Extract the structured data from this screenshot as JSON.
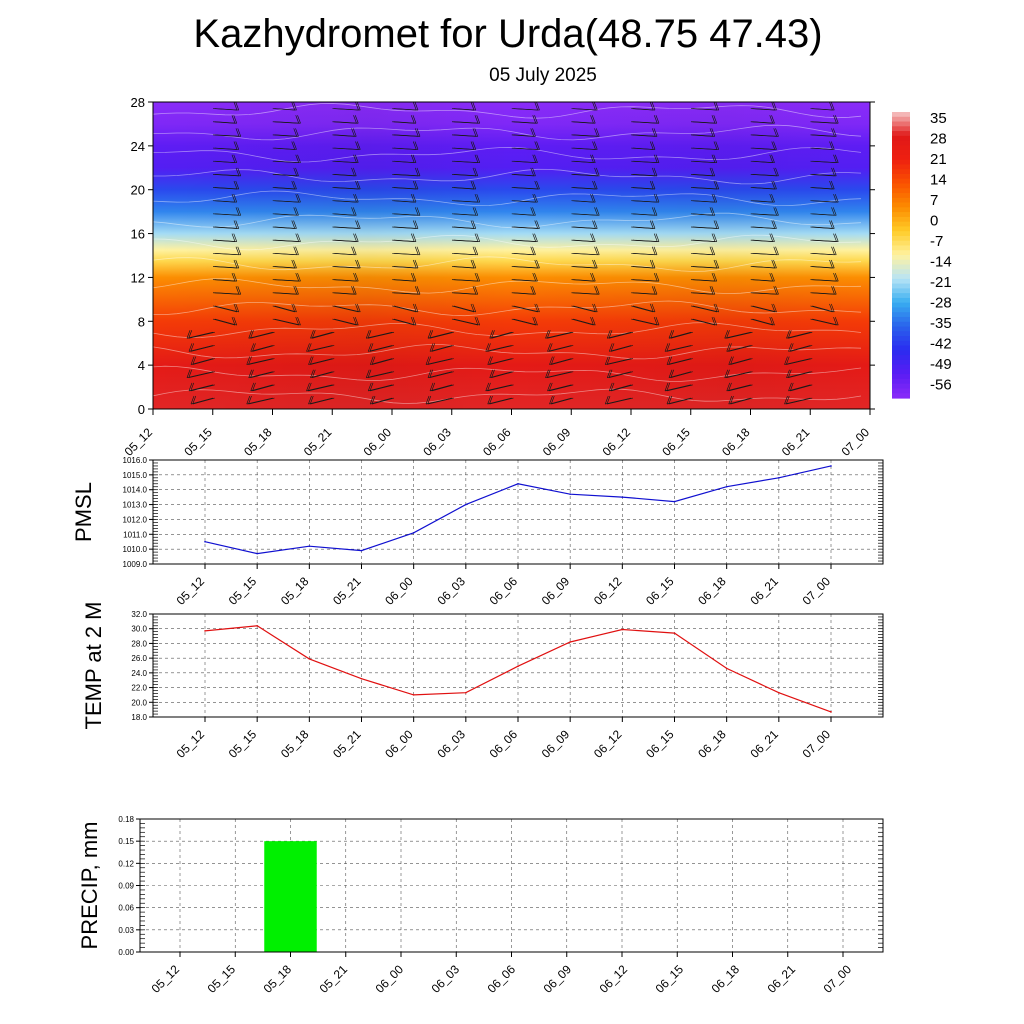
{
  "title": "Kazhydromet for Urda(48.75 47.43)",
  "subtitle": "05 July 2025",
  "chart_data": [
    {
      "type": "heatmap",
      "time_labels": [
        "05_12",
        "05_15",
        "05_18",
        "05_21",
        "06_00",
        "06_03",
        "06_06",
        "06_09",
        "06_12",
        "06_15",
        "06_18",
        "06_21",
        "07_00"
      ],
      "y_ticks": [
        "0",
        "4",
        "8",
        "12",
        "16",
        "20",
        "24",
        "28"
      ],
      "ylim": [
        0,
        28
      ],
      "colorbar": {
        "labels": [
          "35",
          "28",
          "21",
          "14",
          "7",
          "0",
          "-7",
          "-14",
          "-21",
          "-28",
          "-35",
          "-42",
          "-49",
          "-56"
        ],
        "colors": [
          "#f6c8c8",
          "#e01818",
          "#ee2010",
          "#fa5200",
          "#fc8c00",
          "#ffcc28",
          "#fff2a0",
          "#b8e4f6",
          "#38aef0",
          "#2a62ec",
          "#2a2cf0",
          "#5a1cf4",
          "#8a2cf8"
        ]
      },
      "temperature_by_level": [
        {
          "y": 0,
          "t": 30
        },
        {
          "y": 4,
          "t": 27
        },
        {
          "y": 8,
          "t": 16
        },
        {
          "y": 12,
          "t": 3
        },
        {
          "y": 13.5,
          "t": -8
        },
        {
          "y": 14.5,
          "t": -14
        },
        {
          "y": 16,
          "t": -24
        },
        {
          "y": 18,
          "t": -36
        },
        {
          "y": 20,
          "t": -44
        },
        {
          "y": 22,
          "t": -56
        },
        {
          "y": 24,
          "t": -58
        },
        {
          "y": 26,
          "t": -64
        },
        {
          "y": 28,
          "t": -66
        }
      ],
      "wind_barbs": "present"
    },
    {
      "type": "line",
      "ylabel": "PMSL",
      "x": [
        "05_12",
        "05_15",
        "05_18",
        "05_21",
        "06_00",
        "06_03",
        "06_06",
        "06_09",
        "06_12",
        "06_15",
        "06_18",
        "06_21",
        "07_00"
      ],
      "y_ticks": [
        "1009.0",
        "1010.0",
        "1011.0",
        "1012.0",
        "1013.0",
        "1014.0",
        "1015.0",
        "1016.0"
      ],
      "ylim": [
        1009,
        1016
      ],
      "values": [
        1010.5,
        1009.7,
        1010.2,
        1009.9,
        1011.1,
        1013.0,
        1014.4,
        1013.7,
        1013.5,
        1013.2,
        1014.2,
        1014.8,
        1015.6
      ],
      "color": "#1010d0",
      "grid": true
    },
    {
      "type": "line",
      "ylabel": "TEMP at 2 M",
      "x": [
        "05_12",
        "05_15",
        "05_18",
        "05_21",
        "06_00",
        "06_03",
        "06_06",
        "06_09",
        "06_12",
        "06_15",
        "06_18",
        "06_21",
        "07_00"
      ],
      "y_ticks": [
        "18.0",
        "20.0",
        "22.0",
        "24.0",
        "26.0",
        "28.0",
        "30.0",
        "32.0"
      ],
      "ylim": [
        18,
        32
      ],
      "values": [
        29.7,
        30.4,
        25.9,
        23.2,
        21.0,
        21.3,
        24.9,
        28.2,
        29.9,
        29.4,
        24.6,
        21.3,
        18.7
      ],
      "color": "#e01010",
      "grid": true
    },
    {
      "type": "bar",
      "ylabel": "PRECIP, mm",
      "categories": [
        "05_12",
        "05_15",
        "05_18",
        "05_21",
        "06_00",
        "06_03",
        "06_06",
        "06_09",
        "06_12",
        "06_15",
        "06_18",
        "06_21",
        "07_00"
      ],
      "y_ticks": [
        "0.00",
        "0.03",
        "0.06",
        "0.09",
        "0.12",
        "0.15",
        "0.18"
      ],
      "ylim": [
        0,
        0.18
      ],
      "values": [
        0,
        0,
        0.15,
        0,
        0,
        0,
        0,
        0,
        0,
        0,
        0,
        0,
        0
      ],
      "color": "#00f000",
      "grid": true
    }
  ]
}
